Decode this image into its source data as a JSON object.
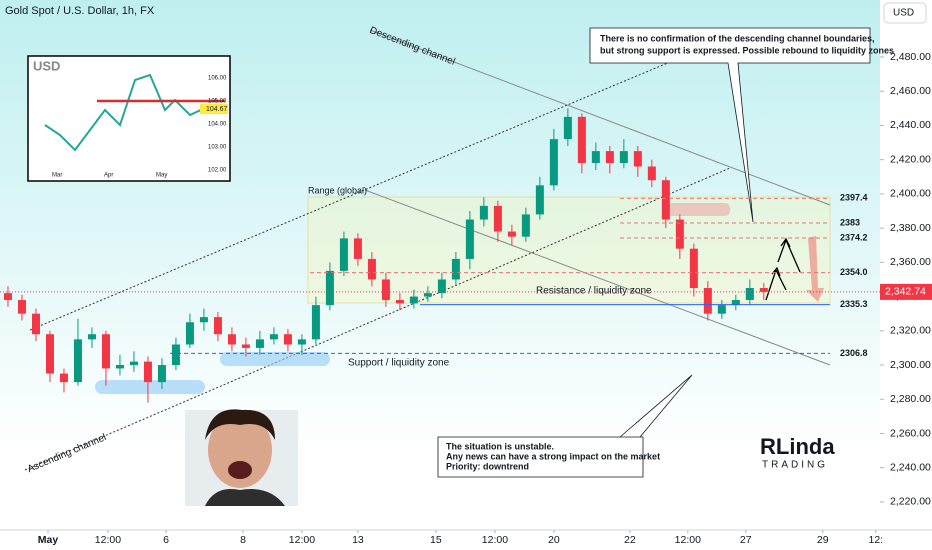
{
  "chart_data": {
    "type": "candlestick",
    "title": "Gold Spot / U.S. Dollar, 1h, FX",
    "currency": "USD",
    "ylim": [
      2203.6,
      2513.3
    ],
    "xlim": [
      -0.57,
      62.3
    ],
    "yticks": [
      {
        "value": 2220,
        "label": "2,220.00"
      },
      {
        "value": 2240,
        "label": "2,240.00"
      },
      {
        "value": 2260,
        "label": "2,260.00"
      },
      {
        "value": 2280,
        "label": "2,280.00"
      },
      {
        "value": 2300,
        "label": "2,300.00"
      },
      {
        "value": 2320,
        "label": "2,320.00"
      },
      {
        "value": 2340,
        "label": "2,340.00"
      },
      {
        "value": 2360,
        "label": "2,360.00"
      },
      {
        "value": 2380,
        "label": "2,380.00"
      },
      {
        "value": 2400,
        "label": "2,400.00"
      },
      {
        "value": 2420,
        "label": "2,420.00"
      },
      {
        "value": 2440,
        "label": "2,440.00"
      },
      {
        "value": 2460,
        "label": "2,460.00"
      },
      {
        "value": 2480,
        "label": "2,480.00"
      }
    ],
    "xticks": [
      {
        "value": 2.86,
        "label": "May"
      },
      {
        "value": 7.14,
        "label": "12:00"
      },
      {
        "value": 11.29,
        "label": "6"
      },
      {
        "value": 16.79,
        "label": "8"
      },
      {
        "value": 21,
        "label": "12:00"
      },
      {
        "value": 25,
        "label": "13"
      },
      {
        "value": 30.57,
        "label": "15"
      },
      {
        "value": 34.79,
        "label": "12:00"
      },
      {
        "value": 39,
        "label": "20"
      },
      {
        "value": 44.43,
        "label": "22"
      },
      {
        "value": 48.57,
        "label": "12:00"
      },
      {
        "value": 52.71,
        "label": "27"
      },
      {
        "value": 58.21,
        "label": "29"
      },
      {
        "value": 62,
        "label": "12:"
      }
    ],
    "up_color": "#089981",
    "down_color": "#f23645",
    "ohlc": [
      [
        2342,
        2346,
        2334,
        2338
      ],
      [
        2338,
        2341,
        2326,
        2330
      ],
      [
        2330,
        2333,
        2314,
        2318
      ],
      [
        2318,
        2320,
        2290,
        2295
      ],
      [
        2295,
        2298,
        2284,
        2290
      ],
      [
        2290,
        2327,
        2288,
        2315
      ],
      [
        2315,
        2322,
        2310,
        2318
      ],
      [
        2318,
        2320,
        2288,
        2298
      ],
      [
        2298,
        2306,
        2294,
        2300
      ],
      [
        2300,
        2308,
        2296,
        2302
      ],
      [
        2302,
        2305,
        2278,
        2290
      ],
      [
        2290,
        2304,
        2286,
        2300
      ],
      [
        2300,
        2316,
        2297,
        2312
      ],
      [
        2312,
        2330,
        2310,
        2325
      ],
      [
        2325,
        2333,
        2320,
        2328
      ],
      [
        2328,
        2331,
        2314,
        2318
      ],
      [
        2318,
        2322,
        2308,
        2312
      ],
      [
        2312,
        2316,
        2305,
        2310
      ],
      [
        2310,
        2320,
        2306,
        2315
      ],
      [
        2315,
        2322,
        2312,
        2318
      ],
      [
        2318,
        2321,
        2308,
        2312
      ],
      [
        2312,
        2318,
        2306,
        2315
      ],
      [
        2315,
        2340,
        2312,
        2335
      ],
      [
        2335,
        2360,
        2332,
        2355
      ],
      [
        2355,
        2378,
        2352,
        2374
      ],
      [
        2374,
        2377,
        2358,
        2362
      ],
      [
        2362,
        2366,
        2346,
        2350
      ],
      [
        2350,
        2354,
        2334,
        2338
      ],
      [
        2338,
        2342,
        2332,
        2336
      ],
      [
        2336,
        2344,
        2333,
        2340
      ],
      [
        2340,
        2346,
        2337,
        2342
      ],
      [
        2342,
        2354,
        2339,
        2350
      ],
      [
        2350,
        2366,
        2347,
        2362
      ],
      [
        2362,
        2390,
        2356,
        2385
      ],
      [
        2385,
        2398,
        2381,
        2393
      ],
      [
        2393,
        2396,
        2372,
        2378
      ],
      [
        2378,
        2382,
        2370,
        2375
      ],
      [
        2375,
        2392,
        2372,
        2388
      ],
      [
        2388,
        2410,
        2385,
        2405
      ],
      [
        2405,
        2438,
        2402,
        2432
      ],
      [
        2432,
        2450,
        2428,
        2445
      ],
      [
        2445,
        2447,
        2412,
        2418
      ],
      [
        2418,
        2430,
        2414,
        2425
      ],
      [
        2425,
        2428,
        2412,
        2418
      ],
      [
        2418,
        2432,
        2415,
        2425
      ],
      [
        2425,
        2428,
        2410,
        2416
      ],
      [
        2416,
        2420,
        2404,
        2408
      ],
      [
        2408,
        2410,
        2380,
        2385
      ],
      [
        2385,
        2388,
        2362,
        2368
      ],
      [
        2368,
        2371,
        2340,
        2345
      ],
      [
        2345,
        2349,
        2326,
        2330
      ],
      [
        2330,
        2338,
        2327,
        2335
      ],
      [
        2335,
        2341,
        2332,
        2338
      ],
      [
        2338,
        2350,
        2335,
        2345
      ],
      [
        2345,
        2348,
        2338,
        2342.74
      ]
    ],
    "last_price": {
      "value": 2342.74,
      "label": "2,342.74"
    },
    "levels": [
      2397.4,
      2383,
      2374.2,
      {
        "value": 2354,
        "label": "2354.0"
      },
      2335.3,
      2306.8
    ],
    "level_colors": [
      "#e57373",
      "#e57373",
      "#e57373",
      "#e57373",
      "#2962ff",
      "#2962ff"
    ],
    "annotations": {
      "descending": "Descending channel",
      "ascending": "Ascending channel",
      "range": "Range (global)",
      "resistance": "Resistance / liquidity zone",
      "support": "Support / liquidity zone",
      "top_note": [
        "There is no confirmation of the descending channel boundaries,",
        "but strong support is expressed. Possible rebound to liquidity zones"
      ],
      "bottom_note": [
        "The situation is unstable.",
        "Any news can have a strong impact on the market",
        "Priority: downtrend"
      ]
    },
    "inset": {
      "title": "USD",
      "ticks": [
        "106.00",
        "105.00",
        "104.00",
        "103.00",
        "102.00"
      ],
      "price": "104.67",
      "months": [
        "Mar",
        "Apr",
        "May"
      ]
    },
    "logo": {
      "top": "RLinda",
      "bottom": "TRADING"
    }
  }
}
